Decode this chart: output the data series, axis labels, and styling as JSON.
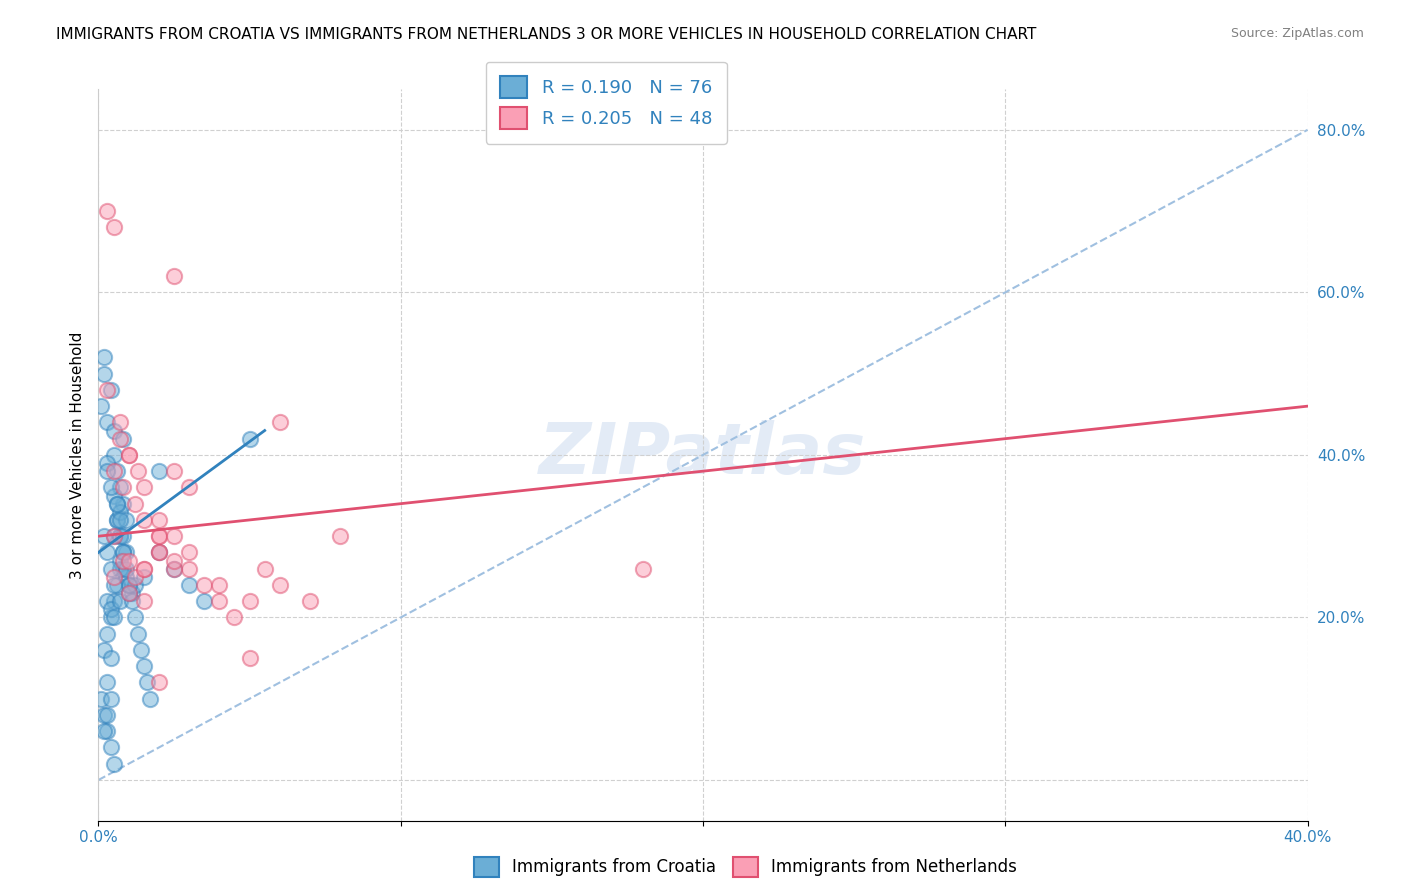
{
  "title": "IMMIGRANTS FROM CROATIA VS IMMIGRANTS FROM NETHERLANDS 3 OR MORE VEHICLES IN HOUSEHOLD CORRELATION CHART",
  "source": "Source: ZipAtlas.com",
  "xlabel_bottom": "",
  "ylabel_left": "3 or more Vehicles in Household",
  "x_label_bottom": "",
  "x_ticks": [
    0.0,
    0.1,
    0.2,
    0.3,
    0.4
  ],
  "x_tick_labels": [
    "0.0%",
    "",
    "",
    "",
    "40.0%"
  ],
  "y_ticks_right": [
    0.0,
    0.2,
    0.4,
    0.6,
    0.8
  ],
  "y_tick_labels_right": [
    "",
    "20.0%",
    "40.0%",
    "60.0%",
    "80.0%"
  ],
  "xlim": [
    0.0,
    0.4
  ],
  "ylim": [
    -0.05,
    0.85
  ],
  "legend_r_blue": "R = 0.190",
  "legend_n_blue": "N = 76",
  "legend_r_pink": "R = 0.205",
  "legend_n_pink": "N = 48",
  "legend_label_blue": "Immigrants from Croatia",
  "legend_label_pink": "Immigrants from Netherlands",
  "color_blue": "#6baed6",
  "color_pink": "#fa9fb5",
  "color_blue_line": "#3182bd",
  "color_pink_line": "#e05070",
  "color_blue_text": "#3182bd",
  "color_dashed_line": "#a0c0e0",
  "blue_scatter_x": [
    0.002,
    0.004,
    0.003,
    0.005,
    0.006,
    0.007,
    0.005,
    0.003,
    0.008,
    0.007,
    0.009,
    0.006,
    0.005,
    0.007,
    0.008,
    0.009,
    0.01,
    0.011,
    0.008,
    0.007,
    0.006,
    0.005,
    0.004,
    0.003,
    0.002,
    0.003,
    0.004,
    0.005,
    0.007,
    0.01,
    0.012,
    0.015,
    0.02,
    0.025,
    0.03,
    0.035,
    0.02,
    0.001,
    0.002,
    0.003,
    0.004,
    0.005,
    0.006,
    0.007,
    0.008,
    0.009,
    0.01,
    0.011,
    0.012,
    0.013,
    0.014,
    0.015,
    0.016,
    0.017,
    0.005,
    0.006,
    0.007,
    0.008,
    0.009,
    0.002,
    0.003,
    0.004,
    0.005,
    0.001,
    0.002,
    0.003,
    0.004,
    0.006,
    0.007,
    0.008,
    0.05,
    0.003,
    0.004,
    0.003,
    0.002,
    0.004
  ],
  "blue_scatter_y": [
    0.52,
    0.48,
    0.44,
    0.4,
    0.38,
    0.36,
    0.43,
    0.39,
    0.34,
    0.3,
    0.28,
    0.32,
    0.3,
    0.27,
    0.26,
    0.25,
    0.24,
    0.23,
    0.28,
    0.26,
    0.24,
    0.22,
    0.2,
    0.18,
    0.16,
    0.22,
    0.21,
    0.2,
    0.22,
    0.23,
    0.24,
    0.25,
    0.28,
    0.26,
    0.24,
    0.22,
    0.38,
    0.1,
    0.08,
    0.06,
    0.04,
    0.02,
    0.32,
    0.3,
    0.28,
    0.26,
    0.24,
    0.22,
    0.2,
    0.18,
    0.16,
    0.14,
    0.12,
    0.1,
    0.35,
    0.34,
    0.33,
    0.42,
    0.32,
    0.3,
    0.28,
    0.26,
    0.24,
    0.46,
    0.5,
    0.38,
    0.36,
    0.34,
    0.32,
    0.3,
    0.42,
    0.12,
    0.1,
    0.08,
    0.06,
    0.15
  ],
  "pink_scatter_x": [
    0.003,
    0.005,
    0.007,
    0.01,
    0.013,
    0.015,
    0.02,
    0.025,
    0.03,
    0.035,
    0.04,
    0.045,
    0.05,
    0.055,
    0.06,
    0.07,
    0.08,
    0.005,
    0.008,
    0.012,
    0.015,
    0.02,
    0.025,
    0.03,
    0.003,
    0.007,
    0.01,
    0.015,
    0.02,
    0.025,
    0.005,
    0.008,
    0.012,
    0.02,
    0.03,
    0.04,
    0.05,
    0.06,
    0.18,
    0.005,
    0.01,
    0.015,
    0.02,
    0.025,
    0.01,
    0.015,
    0.02,
    0.025
  ],
  "pink_scatter_y": [
    0.48,
    0.68,
    0.44,
    0.4,
    0.38,
    0.36,
    0.28,
    0.62,
    0.26,
    0.24,
    0.22,
    0.2,
    0.15,
    0.26,
    0.24,
    0.22,
    0.3,
    0.38,
    0.36,
    0.34,
    0.32,
    0.3,
    0.38,
    0.36,
    0.7,
    0.42,
    0.4,
    0.26,
    0.3,
    0.26,
    0.3,
    0.27,
    0.25,
    0.12,
    0.28,
    0.24,
    0.22,
    0.44,
    0.26,
    0.25,
    0.23,
    0.22,
    0.32,
    0.3,
    0.27,
    0.26,
    0.28,
    0.27
  ],
  "blue_line_x": [
    0.0,
    0.055
  ],
  "blue_line_y": [
    0.28,
    0.43
  ],
  "pink_line_x": [
    0.0,
    0.4
  ],
  "pink_line_y": [
    0.3,
    0.46
  ],
  "dashed_line_x": [
    0.0,
    0.4
  ],
  "dashed_line_y": [
    0.0,
    0.8
  ],
  "watermark_text": "ZIPatlas",
  "background_color": "#ffffff",
  "grid_color": "#d0d0d0",
  "title_fontsize": 11,
  "axis_label_fontsize": 11,
  "tick_fontsize": 11,
  "legend_fontsize": 13,
  "scatter_size": 120,
  "scatter_alpha": 0.5,
  "scatter_linewidth": 1.5
}
